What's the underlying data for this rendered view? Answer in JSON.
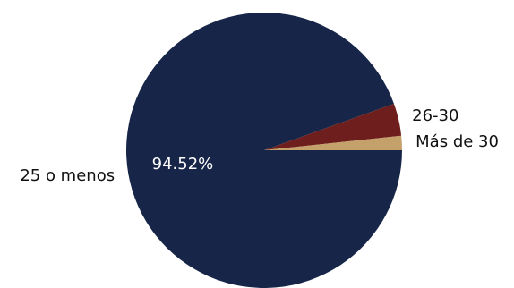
{
  "chart_data": {
    "type": "pie",
    "title": "",
    "slices": [
      {
        "label": "25 o menos",
        "value": 94.52,
        "pct_label": "94.52%",
        "color": "#172648"
      },
      {
        "label": "26-30",
        "value": 3.8,
        "pct_label": "",
        "color": "#6e1f1d"
      },
      {
        "label": "Más de 30",
        "value": 1.68,
        "pct_label": "",
        "color": "#c4a06a"
      }
    ],
    "start_angle_deg": 0,
    "direction": "clockwise",
    "legend": "none"
  }
}
